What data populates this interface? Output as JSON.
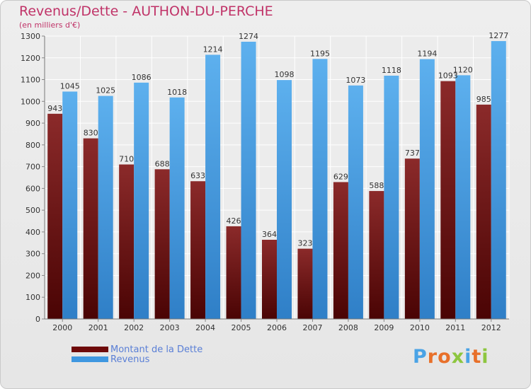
{
  "header": {
    "title": "Revenus/Dette - AUTHON-DU-PERCHE",
    "subtitle": "(en milliers d'€)"
  },
  "chart_data": {
    "type": "bar",
    "title": "Revenus/Dette - AUTHON-DU-PERCHE",
    "subtitle": "(en milliers d'€)",
    "categories": [
      "2000",
      "2001",
      "2002",
      "2003",
      "2004",
      "2005",
      "2006",
      "2007",
      "2008",
      "2009",
      "2010",
      "2011",
      "2012"
    ],
    "series": [
      {
        "name": "Montant de la Dette",
        "color": "#8b1a1a",
        "values": [
          943,
          830,
          710,
          688,
          633,
          426,
          364,
          323,
          629,
          588,
          737,
          1093,
          985
        ],
        "labels": [
          "943",
          "830",
          "710",
          "688",
          "633",
          "426",
          "364",
          "323",
          "629",
          "588",
          "737",
          "1093",
          "985"
        ]
      },
      {
        "name": "Revenus",
        "color": "#4aa3e6",
        "values": [
          1045,
          1025,
          1086,
          1018,
          1214,
          1274,
          1098,
          1195,
          1073,
          1118,
          1194,
          1120,
          1277
        ],
        "labels": [
          "1045",
          "1025",
          "1086",
          "1018",
          "1214",
          "1274",
          "1098",
          "1195",
          "1073",
          "1118",
          "1194",
          "1120",
          "1277"
        ]
      }
    ],
    "ylim": [
      0,
      1300
    ],
    "yticks": [
      "0",
      "100",
      "200",
      "300",
      "400",
      "500",
      "600",
      "700",
      "800",
      "900",
      "1000",
      "1100",
      "1200",
      "1300"
    ],
    "grid": true,
    "legend_position": "bottom-left"
  },
  "legend": {
    "items": [
      {
        "label": "Montant de la Dette",
        "color": "#6e0a0a"
      },
      {
        "label": "Revenus",
        "color": "#3f97e0"
      }
    ]
  },
  "logo": {
    "letters": [
      "P",
      "r",
      "o",
      "x",
      "i",
      "t",
      "i"
    ],
    "colors": [
      "#4aa3e6",
      "#e8702a",
      "#e8702a",
      "#8dc63f",
      "#4aa3e6",
      "#e8702a",
      "#8dc63f"
    ]
  }
}
